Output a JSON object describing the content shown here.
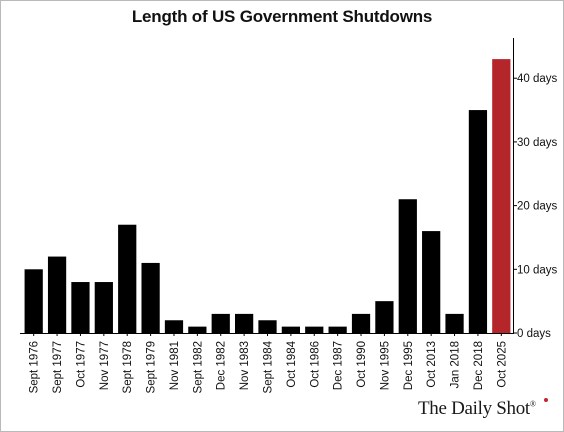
{
  "chart_data": {
    "type": "bar",
    "title": "Length of US Government Shutdowns",
    "categories": [
      "Sept 1976",
      "Sept 1977",
      "Oct 1977",
      "Nov 1977",
      "Sept 1978",
      "Sept 1979",
      "Nov 1981",
      "Sept 1982",
      "Dec 1982",
      "Nov 1983",
      "Sept 1984",
      "Oct 1984",
      "Oct 1986",
      "Dec 1987",
      "Oct 1990",
      "Nov 1995",
      "Dec 1995",
      "Oct 2013",
      "Jan 2018",
      "Dec 2018",
      "Oct 2025"
    ],
    "values": [
      10,
      12,
      8,
      8,
      17,
      11,
      2,
      1,
      3,
      3,
      2,
      1,
      1,
      1,
      3,
      5,
      21,
      16,
      3,
      35,
      43
    ],
    "ylim": [
      0,
      46
    ],
    "yticks": [
      0,
      10,
      20,
      30,
      40
    ],
    "ytick_labels": [
      "0 days",
      "10 days",
      "20 days",
      "30 days",
      "40 days"
    ],
    "y_axis_position": "right",
    "grid": false,
    "colors": {
      "default_bar": "#000000",
      "highlight_bar": "#b5262b",
      "highlight_category": "Oct 2025"
    }
  },
  "branding": {
    "name": "The Daily Shot",
    "mark": "®",
    "dot_color": "#c0272d"
  }
}
